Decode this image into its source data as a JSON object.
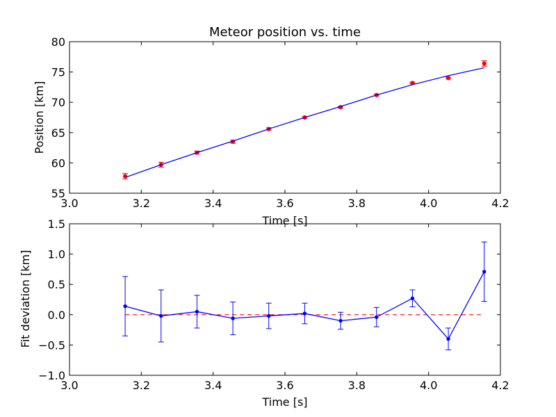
{
  "chart_data": [
    {
      "type": "scatter",
      "title": "Meteor position vs. time",
      "xlabel": "Time [s]",
      "ylabel": "Position [km]",
      "xlim": [
        3.0,
        4.2
      ],
      "ylim": [
        55,
        80
      ],
      "grid": false,
      "xticks": [
        "3.0",
        "3.2",
        "3.4",
        "3.6",
        "3.8",
        "4.0",
        "4.2"
      ],
      "yticks": [
        "55",
        "60",
        "65",
        "70",
        "75",
        "80"
      ],
      "series": [
        {
          "kind": "errorbar-points",
          "color": "#ff0000",
          "x": [
            3.155,
            3.255,
            3.355,
            3.455,
            3.555,
            3.655,
            3.755,
            3.855,
            3.955,
            4.055,
            4.155
          ],
          "y": [
            57.8,
            59.7,
            61.7,
            63.5,
            65.6,
            67.5,
            69.2,
            71.2,
            73.2,
            74.0,
            76.4
          ],
          "yerr": [
            0.45,
            0.4,
            0.25,
            0.25,
            0.2,
            0.15,
            0.15,
            0.15,
            0.12,
            0.15,
            0.45
          ]
        },
        {
          "kind": "fit-line",
          "color": "#0000ff",
          "x": [
            3.155,
            3.255,
            3.355,
            3.455,
            3.555,
            3.655,
            3.755,
            3.855,
            3.955,
            4.055,
            4.155
          ],
          "y": [
            57.6,
            59.7,
            61.7,
            63.6,
            65.6,
            67.5,
            69.3,
            71.2,
            72.9,
            74.4,
            75.7
          ]
        }
      ]
    },
    {
      "type": "line",
      "title": "",
      "xlabel": "Time [s]",
      "ylabel": "Fit deviation [km]",
      "xlim": [
        3.0,
        4.2
      ],
      "ylim": [
        -1.0,
        1.5
      ],
      "grid": false,
      "xticks": [
        "3.0",
        "3.2",
        "3.4",
        "3.6",
        "3.8",
        "4.0",
        "4.2"
      ],
      "yticks": [
        "−1.0",
        "−0.5",
        "0.0",
        "0.5",
        "1.0",
        "1.5"
      ],
      "reference_line": {
        "y": 0.0,
        "x_from": 3.155,
        "x_to": 4.155,
        "color": "#ff0000",
        "style": "dashed"
      },
      "series": [
        {
          "kind": "errorbar-line",
          "color": "#0000ff",
          "x": [
            3.155,
            3.255,
            3.355,
            3.455,
            3.555,
            3.655,
            3.755,
            3.855,
            3.955,
            4.055,
            4.155
          ],
          "y": [
            0.14,
            -0.02,
            0.05,
            -0.06,
            -0.02,
            0.02,
            -0.1,
            -0.04,
            0.27,
            -0.4,
            0.71
          ],
          "yerr": [
            0.49,
            0.43,
            0.27,
            0.27,
            0.21,
            0.17,
            0.14,
            0.16,
            0.14,
            0.18,
            0.49
          ]
        }
      ]
    }
  ]
}
